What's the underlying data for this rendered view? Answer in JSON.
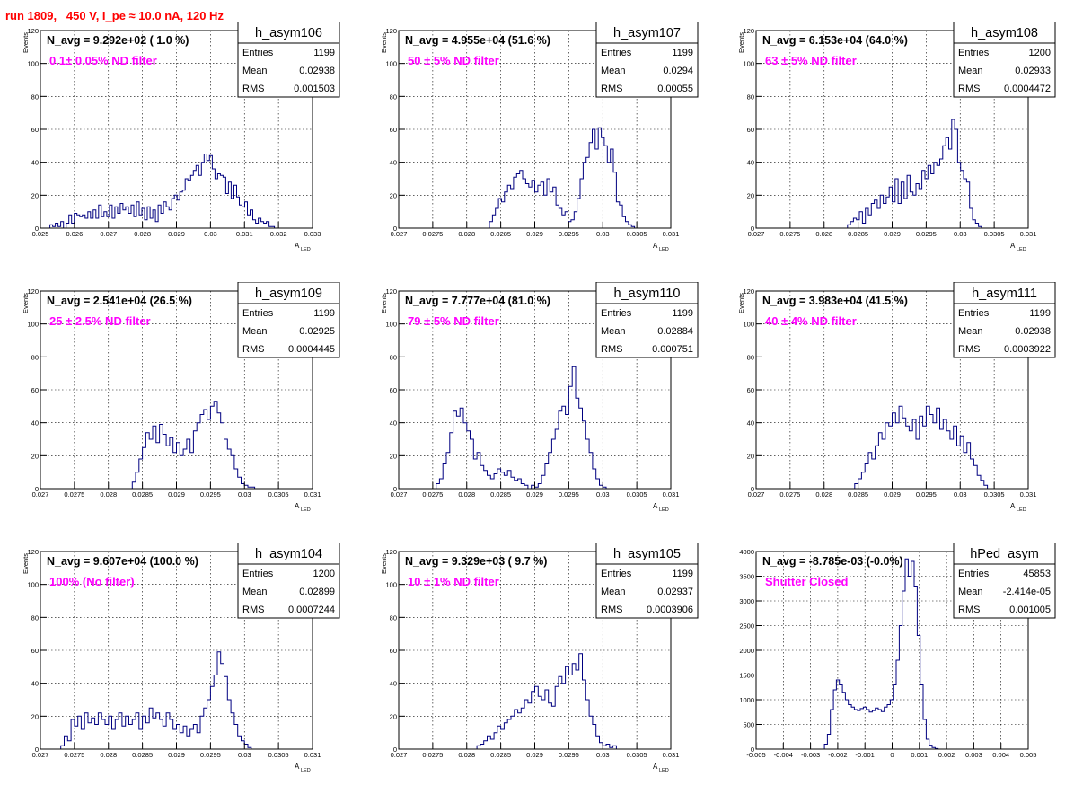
{
  "run_title": "run 1809,   450 V, I_pe ≈ 10.0 nA, 120 Hz",
  "colors": {
    "hist": "#000080",
    "title": "#ff0000",
    "annotation": "#ff00ff",
    "frame": "#000000",
    "grid": "#000000"
  },
  "chart_data": [
    {
      "type": "histogram",
      "hist_name": "h_asym106",
      "stats": [
        [
          "Entries",
          "1199"
        ],
        [
          "Mean",
          "0.02938"
        ],
        [
          "RMS",
          "0.001503"
        ]
      ],
      "navg_label": "N_avg = 9.292e+02 ( 1.0 %)",
      "filter_label": "0.1± 0.05% ND filter",
      "xlabel_main": "A",
      "xlabel_sub": "LED",
      "ylabel": "Events",
      "xlim": [
        0.025,
        0.033
      ],
      "ylim": [
        0,
        120
      ],
      "grid": true,
      "xticks": [
        0.025,
        0.026,
        0.027,
        0.028,
        0.029,
        0.03,
        0.031,
        0.032,
        0.033
      ],
      "xtick_labels": [
        "0.025",
        "0.026",
        "0.027",
        "0.028",
        "0.029",
        "0.03",
        "0.031",
        "0.032",
        "0.033"
      ],
      "yticks": [
        0,
        20,
        40,
        60,
        80,
        100,
        120
      ],
      "ytick_labels": [
        "0",
        "20",
        "40",
        "60",
        "80",
        "100",
        "120"
      ],
      "bins_x0": 0.0252,
      "bins_x1": 0.0322,
      "counts": [
        0,
        2,
        1,
        3,
        1,
        4,
        0,
        3,
        8,
        3,
        9,
        8,
        7,
        8,
        6,
        10,
        6,
        11,
        6,
        14,
        7,
        10,
        7,
        14,
        6,
        13,
        9,
        15,
        11,
        13,
        9,
        14,
        7,
        16,
        8,
        12,
        5,
        13,
        6,
        11,
        4,
        14,
        9,
        16,
        13,
        11,
        18,
        20,
        17,
        22,
        23,
        30,
        29,
        32,
        35,
        38,
        32,
        40,
        45,
        41,
        44,
        36,
        30,
        33,
        32,
        31,
        21,
        28,
        18,
        26,
        19,
        14,
        13,
        16,
        8,
        11,
        5,
        3,
        6,
        4,
        3,
        4,
        1,
        1,
        0,
        0,
        0,
        0
      ]
    },
    {
      "type": "histogram",
      "hist_name": "h_asym107",
      "stats": [
        [
          "Entries",
          "1199"
        ],
        [
          "Mean",
          "0.0294"
        ],
        [
          "RMS",
          "0.00055"
        ]
      ],
      "navg_label": "N_avg = 4.955e+04 (51.6 %)",
      "filter_label": "50 ± 5% ND filter",
      "xlabel_main": "A",
      "xlabel_sub": "LED",
      "ylabel": "Events",
      "xlim": [
        0.027,
        0.031
      ],
      "ylim": [
        0,
        120
      ],
      "grid": true,
      "xticks": [
        0.027,
        0.0275,
        0.028,
        0.0285,
        0.029,
        0.0295,
        0.03,
        0.0305,
        0.031
      ],
      "xtick_labels": [
        "0.027",
        "0.0275",
        "0.028",
        "0.0285",
        "0.029",
        "0.0295",
        "0.03",
        "0.0305",
        "0.031"
      ],
      "yticks": [
        0,
        20,
        40,
        60,
        80,
        100,
        120
      ],
      "ytick_labels": [
        "0",
        "20",
        "40",
        "60",
        "80",
        "100",
        "120"
      ],
      "bins_x0": 0.0282,
      "bins_x1": 0.0306,
      "counts": [
        0,
        0,
        0,
        4,
        8,
        12,
        18,
        16,
        22,
        26,
        24,
        31,
        33,
        35,
        30,
        27,
        25,
        29,
        22,
        26,
        28,
        20,
        30,
        22,
        25,
        14,
        12,
        8,
        10,
        4,
        5,
        10,
        18,
        30,
        40,
        43,
        52,
        60,
        48,
        61,
        55,
        50,
        40,
        48,
        34,
        16,
        14,
        7,
        4,
        2,
        1,
        0,
        0,
        0
      ]
    },
    {
      "type": "histogram",
      "hist_name": "h_asym108",
      "stats": [
        [
          "Entries",
          "1200"
        ],
        [
          "Mean",
          "0.02933"
        ],
        [
          "RMS",
          "0.0004472"
        ]
      ],
      "navg_label": "N_avg = 6.153e+04 (64.0 %)",
      "filter_label": "63 ± 5% ND filter",
      "xlabel_main": "A",
      "xlabel_sub": "LED",
      "ylabel": "Events",
      "xlim": [
        0.027,
        0.031
      ],
      "ylim": [
        0,
        120
      ],
      "grid": true,
      "xticks": [
        0.027,
        0.0275,
        0.028,
        0.0285,
        0.029,
        0.0295,
        0.03,
        0.0305,
        0.031
      ],
      "xtick_labels": [
        "0.027",
        "0.0275",
        "0.028",
        "0.0285",
        "0.029",
        "0.0295",
        "0.03",
        "0.0305",
        "0.031"
      ],
      "yticks": [
        0,
        20,
        40,
        60,
        80,
        100,
        120
      ],
      "ytick_labels": [
        "0",
        "20",
        "40",
        "60",
        "80",
        "100",
        "120"
      ],
      "bins_x0": 0.0283,
      "bins_x1": 0.0304,
      "counts": [
        0,
        2,
        4,
        6,
        5,
        10,
        3,
        12,
        8,
        15,
        17,
        12,
        20,
        15,
        19,
        25,
        16,
        30,
        15,
        28,
        18,
        32,
        22,
        20,
        27,
        24,
        35,
        30,
        38,
        33,
        40,
        38,
        42,
        50,
        55,
        48,
        66,
        60,
        40,
        35,
        30,
        28,
        12,
        5,
        3,
        1,
        0,
        0
      ]
    },
    {
      "type": "histogram",
      "hist_name": "h_asym109",
      "stats": [
        [
          "Entries",
          "1199"
        ],
        [
          "Mean",
          "0.02925"
        ],
        [
          "RMS",
          "0.0004445"
        ]
      ],
      "navg_label": "N_avg = 2.541e+04 (26.5 %)",
      "filter_label": "25 ± 2.5% ND filter",
      "xlabel_main": "A",
      "xlabel_sub": "LED",
      "ylabel": "Events",
      "xlim": [
        0.027,
        0.031
      ],
      "ylim": [
        0,
        120
      ],
      "grid": true,
      "xticks": [
        0.027,
        0.0275,
        0.028,
        0.0285,
        0.029,
        0.0295,
        0.03,
        0.0305,
        0.031
      ],
      "xtick_labels": [
        "0.027",
        "0.0275",
        "0.028",
        "0.0285",
        "0.029",
        "0.0295",
        "0.03",
        "0.0305",
        "0.031"
      ],
      "yticks": [
        0,
        20,
        40,
        60,
        80,
        100,
        120
      ],
      "ytick_labels": [
        "0",
        "20",
        "40",
        "60",
        "80",
        "100",
        "120"
      ],
      "bins_x0": 0.0283,
      "bins_x1": 0.0303,
      "counts": [
        0,
        4,
        10,
        18,
        25,
        34,
        30,
        38,
        28,
        39,
        33,
        26,
        31,
        22,
        28,
        20,
        24,
        30,
        22,
        35,
        40,
        45,
        48,
        42,
        50,
        53,
        46,
        40,
        30,
        24,
        20,
        12,
        7,
        3,
        2,
        1,
        1,
        0,
        0,
        0
      ]
    },
    {
      "type": "histogram",
      "hist_name": "h_asym110",
      "stats": [
        [
          "Entries",
          "1199"
        ],
        [
          "Mean",
          "0.02884"
        ],
        [
          "RMS",
          "0.000751"
        ]
      ],
      "navg_label": "N_avg = 7.777e+04 (81.0 %)",
      "filter_label": "79 ± 5% ND filter",
      "xlabel_main": "A",
      "xlabel_sub": "LED",
      "ylabel": "Events",
      "xlim": [
        0.027,
        0.031
      ],
      "ylim": [
        0,
        120
      ],
      "grid": true,
      "xticks": [
        0.027,
        0.0275,
        0.028,
        0.0285,
        0.029,
        0.0295,
        0.03,
        0.0305,
        0.031
      ],
      "xtick_labels": [
        "0.027",
        "0.0275",
        "0.028",
        "0.0285",
        "0.029",
        "0.0295",
        "0.03",
        "0.0305",
        "0.031"
      ],
      "yticks": [
        0,
        20,
        40,
        60,
        80,
        100,
        120
      ],
      "ytick_labels": [
        "0",
        "20",
        "40",
        "60",
        "80",
        "100",
        "120"
      ],
      "bins_x0": 0.0275,
      "bins_x1": 0.0303,
      "counts": [
        0,
        3,
        6,
        15,
        22,
        34,
        47,
        44,
        49,
        40,
        35,
        30,
        18,
        22,
        14,
        11,
        8,
        6,
        9,
        12,
        10,
        8,
        11,
        7,
        5,
        6,
        3,
        2,
        0,
        2,
        1,
        3,
        8,
        15,
        22,
        30,
        36,
        47,
        50,
        45,
        62,
        74,
        55,
        49,
        41,
        30,
        22,
        12,
        6,
        2,
        1,
        0,
        0,
        0,
        0,
        0
      ]
    },
    {
      "type": "histogram",
      "hist_name": "h_asym111",
      "stats": [
        [
          "Entries",
          "1199"
        ],
        [
          "Mean",
          "0.02938"
        ],
        [
          "RMS",
          "0.0003922"
        ]
      ],
      "navg_label": "N_avg = 3.983e+04 (41.5 %)",
      "filter_label": "40 ± 4% ND filter",
      "xlabel_main": "A",
      "xlabel_sub": "LED",
      "ylabel": "Events",
      "xlim": [
        0.027,
        0.031
      ],
      "ylim": [
        0,
        120
      ],
      "grid": true,
      "xticks": [
        0.027,
        0.0275,
        0.028,
        0.0285,
        0.029,
        0.0295,
        0.03,
        0.0305,
        0.031
      ],
      "xtick_labels": [
        "0.027",
        "0.0275",
        "0.028",
        "0.0285",
        "0.029",
        "0.0295",
        "0.03",
        "0.0305",
        "0.031"
      ],
      "yticks": [
        0,
        20,
        40,
        60,
        80,
        100,
        120
      ],
      "ytick_labels": [
        "0",
        "20",
        "40",
        "60",
        "80",
        "100",
        "120"
      ],
      "bins_x0": 0.0284,
      "bins_x1": 0.0304,
      "counts": [
        0,
        3,
        6,
        10,
        15,
        22,
        18,
        26,
        34,
        30,
        40,
        38,
        46,
        40,
        50,
        43,
        38,
        35,
        42,
        30,
        44,
        38,
        50,
        45,
        40,
        49,
        36,
        42,
        35,
        30,
        38,
        26,
        32,
        22,
        28,
        18,
        14,
        8,
        5,
        2
      ]
    },
    {
      "type": "histogram",
      "hist_name": "h_asym104",
      "stats": [
        [
          "Entries",
          "1200"
        ],
        [
          "Mean",
          "0.02899"
        ],
        [
          "RMS",
          "0.0007244"
        ]
      ],
      "navg_label": "N_avg = 9.607e+04 (100.0 %)",
      "filter_label": "100% (No filter)",
      "xlabel_main": "A",
      "xlabel_sub": "LED",
      "ylabel": "Events",
      "xlim": [
        0.027,
        0.031
      ],
      "ylim": [
        0,
        120
      ],
      "grid": true,
      "xticks": [
        0.027,
        0.0275,
        0.028,
        0.0285,
        0.029,
        0.0295,
        0.03,
        0.0305,
        0.031
      ],
      "xtick_labels": [
        "0.027",
        "0.0275",
        "0.028",
        "0.0285",
        "0.029",
        "0.0295",
        "0.03",
        "0.0305",
        "0.031"
      ],
      "yticks": [
        0,
        20,
        40,
        60,
        80,
        100,
        120
      ],
      "ytick_labels": [
        "0",
        "20",
        "40",
        "60",
        "80",
        "100",
        "120"
      ],
      "bins_x0": 0.0273,
      "bins_x1": 0.0303,
      "counts": [
        2,
        8,
        5,
        18,
        14,
        20,
        12,
        22,
        16,
        19,
        15,
        22,
        18,
        15,
        20,
        12,
        18,
        22,
        14,
        20,
        15,
        18,
        22,
        12,
        20,
        16,
        25,
        19,
        22,
        18,
        14,
        22,
        18,
        12,
        15,
        10,
        14,
        8,
        12,
        15,
        10,
        20,
        25,
        30,
        38,
        45,
        59,
        52,
        44,
        30,
        22,
        15,
        8,
        5,
        3,
        1,
        0,
        0,
        0,
        0
      ]
    },
    {
      "type": "histogram",
      "hist_name": "h_asym105",
      "stats": [
        [
          "Entries",
          "1199"
        ],
        [
          "Mean",
          "0.02937"
        ],
        [
          "RMS",
          "0.0003906"
        ]
      ],
      "navg_label": "N_avg = 9.329e+03 ( 9.7 %)",
      "filter_label": "10 ± 1% ND filter",
      "xlabel_main": "A",
      "xlabel_sub": "LED",
      "ylabel": "Events",
      "xlim": [
        0.027,
        0.031
      ],
      "ylim": [
        0,
        120
      ],
      "grid": true,
      "xticks": [
        0.027,
        0.0275,
        0.028,
        0.0285,
        0.029,
        0.0295,
        0.03,
        0.0305,
        0.031
      ],
      "xtick_labels": [
        "0.027",
        "0.0275",
        "0.028",
        "0.0285",
        "0.029",
        "0.0295",
        "0.03",
        "0.0305",
        "0.031"
      ],
      "yticks": [
        0,
        20,
        40,
        60,
        80,
        100,
        120
      ],
      "ytick_labels": [
        "0",
        "20",
        "40",
        "60",
        "80",
        "100",
        "120"
      ],
      "bins_x0": 0.0281,
      "bins_x1": 0.0304,
      "counts": [
        0,
        2,
        3,
        5,
        8,
        6,
        10,
        14,
        12,
        16,
        18,
        20,
        24,
        22,
        25,
        30,
        28,
        35,
        38,
        32,
        30,
        36,
        28,
        26,
        38,
        44,
        40,
        50,
        45,
        52,
        48,
        58,
        42,
        30,
        20,
        15,
        8,
        4,
        2,
        3,
        1,
        2,
        0,
        0,
        0,
        0
      ]
    },
    {
      "type": "histogram",
      "hist_name": "hPed_asym",
      "stats": [
        [
          "Entries",
          "45853"
        ],
        [
          "Mean",
          "-2.414e-05"
        ],
        [
          "RMS",
          "0.001005"
        ]
      ],
      "navg_label": "N_avg = -8.785e-03 (-0.0%)",
      "filter_label": "Shutter Closed",
      "xlabel_main": "",
      "xlabel_sub": "",
      "ylabel": "",
      "xlim": [
        -0.005,
        0.005
      ],
      "ylim": [
        0,
        4000
      ],
      "grid": true,
      "xticks": [
        -0.005,
        -0.004,
        -0.003,
        -0.002,
        -0.001,
        0,
        0.001,
        0.002,
        0.003,
        0.004,
        0.005
      ],
      "xtick_labels": [
        "-0.005",
        "-0.004",
        "-0.003",
        "-0.002",
        "-0.001",
        "0",
        "0.001",
        "0.002",
        "0.003",
        "0.004",
        "0.005"
      ],
      "yticks": [
        0,
        500,
        1000,
        1500,
        2000,
        2500,
        3000,
        3500,
        4000
      ],
      "ytick_labels": [
        "0",
        "500",
        "1000",
        "1500",
        "2000",
        "2500",
        "3000",
        "3500",
        "4000"
      ],
      "bins_x0": -0.0026,
      "bins_x1": 0.0018,
      "counts": [
        0,
        100,
        300,
        800,
        1200,
        1400,
        1300,
        1150,
        1000,
        900,
        850,
        800,
        780,
        820,
        850,
        800,
        750,
        780,
        830,
        800,
        760,
        850,
        900,
        1000,
        1300,
        1800,
        2500,
        3200,
        3850,
        3500,
        3800,
        3300,
        2300,
        1300,
        600,
        200,
        80,
        30,
        10,
        0
      ]
    }
  ]
}
